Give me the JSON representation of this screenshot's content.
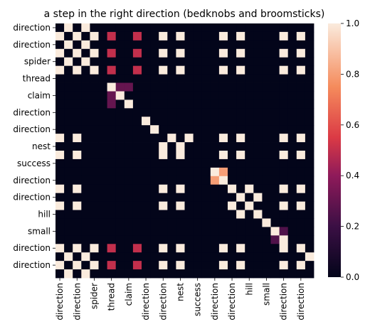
{
  "chart_data": {
    "type": "heatmap",
    "title": "a step in the right direction (bedknobs and broomsticks)",
    "xlabel": "",
    "ylabel": "",
    "x_tick_labels": [
      "direction",
      "direction",
      "spider",
      "thread",
      "claim",
      "direction",
      "direction",
      "nest",
      "success",
      "direction",
      "direction",
      "hill",
      "small",
      "direction",
      "direction"
    ],
    "y_tick_labels": [
      "direction",
      "direction",
      "spider",
      "thread",
      "claim",
      "direction",
      "direction",
      "nest",
      "success",
      "direction",
      "direction",
      "hill",
      "small",
      "direction",
      "direction"
    ],
    "n_rows": 30,
    "n_cols": 30,
    "tick_every": 2,
    "colorscale": "rocket",
    "colorbar": {
      "min": 0.0,
      "max": 1.0,
      "ticks": [
        "0.0",
        "0.2",
        "0.4",
        "0.6",
        "0.8",
        "1.0"
      ]
    },
    "values": [
      [
        0,
        1,
        0,
        1,
        0,
        0,
        0,
        0,
        0,
        0,
        0,
        0,
        0,
        0,
        0,
        0,
        0,
        0,
        0,
        0,
        0,
        0,
        0,
        0,
        0,
        0,
        0,
        0,
        0,
        0
      ],
      [
        1,
        0,
        1,
        0,
        1,
        0,
        0.5,
        0,
        0,
        0.5,
        0,
        0,
        1,
        0,
        1,
        0,
        0,
        0,
        0,
        1,
        0,
        1,
        0,
        0,
        0,
        0,
        1,
        0,
        1,
        0
      ],
      [
        0,
        1,
        0,
        1,
        0,
        0,
        0,
        0,
        0,
        0,
        0,
        0,
        0,
        0,
        0,
        0,
        0,
        0,
        0,
        0,
        0,
        0,
        0,
        0,
        0,
        0,
        0,
        0,
        0,
        0
      ],
      [
        1,
        0,
        1,
        0,
        1,
        0,
        0.5,
        0,
        0,
        0.5,
        0,
        0,
        1,
        0,
        1,
        0,
        0,
        0,
        0,
        1,
        0,
        1,
        0,
        0,
        0,
        0,
        1,
        0,
        1,
        0
      ],
      [
        0,
        1,
        0,
        1,
        0,
        0,
        0,
        0,
        0,
        0,
        0,
        0,
        0,
        0,
        0,
        0,
        0,
        0,
        0,
        0,
        0,
        0,
        0,
        0,
        0,
        0,
        0,
        0,
        0,
        0
      ],
      [
        1,
        0,
        1,
        0,
        1,
        0,
        0.5,
        0,
        0,
        0.5,
        0,
        0,
        1,
        0,
        1,
        0,
        0,
        0,
        0,
        1,
        0,
        1,
        0,
        0,
        0,
        0,
        1,
        0,
        1,
        0
      ],
      [
        0,
        0,
        0,
        0,
        0,
        0,
        0,
        0,
        0,
        0,
        0,
        0,
        0,
        0,
        0,
        0,
        0,
        0,
        0,
        0,
        0,
        0,
        0,
        0,
        0,
        0,
        0,
        0,
        0,
        0
      ],
      [
        0,
        0,
        0,
        0,
        0,
        0,
        1,
        0.3,
        0.3,
        0,
        0,
        0,
        0,
        0,
        0,
        0,
        0,
        0,
        0,
        0,
        0,
        0,
        0,
        0,
        0,
        0,
        0,
        0,
        0,
        0
      ],
      [
        0,
        0,
        0,
        0,
        0,
        0,
        0.3,
        1,
        0,
        0,
        0,
        0,
        0,
        0,
        0,
        0,
        0,
        0,
        0,
        0,
        0,
        0,
        0,
        0,
        0,
        0,
        0,
        0,
        0,
        0
      ],
      [
        0,
        0,
        0,
        0,
        0,
        0,
        0.3,
        0,
        1,
        0,
        0,
        0,
        0,
        0,
        0,
        0,
        0,
        0,
        0,
        0,
        0,
        0,
        0,
        0,
        0,
        0,
        0,
        0,
        0,
        0
      ],
      [
        0,
        0,
        0,
        0,
        0,
        0,
        0,
        0,
        0,
        0,
        0,
        0,
        0,
        0,
        0,
        0,
        0,
        0,
        0,
        0,
        0,
        0,
        0,
        0,
        0,
        0,
        0,
        0,
        0,
        0
      ],
      [
        0,
        0,
        0,
        0,
        0,
        0,
        0,
        0,
        0,
        0,
        1,
        0,
        0,
        0,
        0,
        0,
        0,
        0,
        0,
        0,
        0,
        0,
        0,
        0,
        0,
        0,
        0,
        0,
        0,
        0
      ],
      [
        0,
        0,
        0,
        0,
        0,
        0,
        0,
        0,
        0,
        0,
        0,
        1,
        0,
        0,
        0,
        0,
        0,
        0,
        0,
        0,
        0,
        0,
        0,
        0,
        0,
        0,
        0,
        0,
        0,
        0
      ],
      [
        1,
        0,
        1,
        0,
        0,
        0,
        0,
        0,
        0,
        0,
        0,
        0,
        0,
        1,
        0,
        1,
        0,
        0,
        0,
        1,
        0,
        1,
        0,
        0,
        0,
        0,
        1,
        0,
        1,
        0
      ],
      [
        0,
        0,
        0,
        0,
        0,
        0,
        0,
        0,
        0,
        0,
        0,
        0,
        1,
        0,
        1,
        0,
        0,
        0,
        0,
        0,
        0,
        0,
        0,
        0,
        0,
        0,
        0,
        0,
        0,
        0
      ],
      [
        1,
        0,
        1,
        0,
        0,
        0,
        0,
        0,
        0,
        0,
        0,
        0,
        1,
        0,
        1,
        0,
        0,
        0,
        0,
        1,
        0,
        1,
        0,
        0,
        0,
        0,
        1,
        0,
        1,
        0
      ],
      [
        0,
        0,
        0,
        0,
        0,
        0,
        0,
        0,
        0,
        0,
        0,
        0,
        0,
        0,
        0,
        0,
        0,
        0,
        0,
        0,
        0,
        0,
        0,
        0,
        0,
        0,
        0,
        0,
        0,
        0
      ],
      [
        0,
        0,
        0,
        0,
        0,
        0,
        0,
        0,
        0,
        0,
        0,
        0,
        0,
        0,
        0,
        0,
        0,
        0,
        1,
        0.8,
        0,
        0,
        0,
        0,
        0,
        0,
        0,
        0,
        0,
        0
      ],
      [
        0,
        0,
        0,
        0,
        0,
        0,
        0,
        0,
        0,
        0,
        0,
        0,
        0,
        0,
        0,
        0,
        0,
        0,
        0.8,
        1,
        0,
        0,
        0,
        0,
        0,
        0,
        0,
        0,
        0,
        0
      ],
      [
        1,
        0,
        1,
        0,
        0,
        0,
        0,
        0,
        0,
        0,
        0,
        0,
        1,
        0,
        1,
        0,
        0,
        0,
        0,
        0,
        1,
        0,
        1,
        0,
        0,
        0,
        1,
        0,
        1,
        0
      ],
      [
        0,
        0,
        0,
        0,
        0,
        0,
        0,
        0,
        0,
        0,
        0,
        0,
        0,
        0,
        0,
        0,
        0,
        0,
        0,
        0,
        0,
        1,
        0,
        1,
        0,
        0,
        0,
        0,
        0,
        0
      ],
      [
        1,
        0,
        1,
        0,
        0,
        0,
        0,
        0,
        0,
        0,
        0,
        0,
        1,
        0,
        1,
        0,
        0,
        0,
        0,
        0,
        1,
        0,
        1,
        0,
        0,
        0,
        1,
        0,
        1,
        0
      ],
      [
        0,
        0,
        0,
        0,
        0,
        0,
        0,
        0,
        0,
        0,
        0,
        0,
        0,
        0,
        0,
        0,
        0,
        0,
        0,
        0,
        0,
        1,
        0,
        1,
        0,
        0,
        0,
        0,
        0,
        0
      ],
      [
        0,
        0,
        0,
        0,
        0,
        0,
        0,
        0,
        0,
        0,
        0,
        0,
        0,
        0,
        0,
        0,
        0,
        0,
        0,
        0,
        0,
        0,
        0,
        0,
        1,
        0,
        0,
        0,
        0,
        0
      ],
      [
        0,
        0,
        0,
        0,
        0,
        0,
        0,
        0,
        0,
        0,
        0,
        0,
        0,
        0,
        0,
        0,
        0,
        0,
        0,
        0,
        0,
        0,
        0,
        0,
        0,
        1,
        0.25,
        0,
        0,
        0
      ],
      [
        0,
        0,
        0,
        0,
        0,
        0,
        0,
        0,
        0,
        0,
        0,
        0,
        0,
        0,
        0,
        0,
        0,
        0,
        0,
        0,
        0,
        0,
        0,
        0,
        0,
        0.25,
        1,
        0,
        0,
        0
      ],
      [
        1,
        0,
        1,
        0,
        1,
        0,
        0.5,
        0,
        0,
        0.5,
        0,
        0,
        1,
        0,
        1,
        0,
        0,
        0,
        0,
        1,
        0,
        1,
        0,
        0,
        0,
        0,
        1,
        0,
        1,
        0
      ],
      [
        0,
        1,
        0,
        1,
        0,
        0,
        0,
        0,
        0,
        0,
        0,
        0,
        0,
        0,
        0,
        0,
        0,
        0,
        0,
        0,
        0,
        0,
        0,
        0,
        0,
        0,
        0,
        0,
        0,
        1
      ],
      [
        1,
        0,
        1,
        0,
        1,
        0,
        0.5,
        0,
        0,
        0.5,
        0,
        0,
        1,
        0,
        1,
        0,
        0,
        0,
        0,
        1,
        0,
        1,
        0,
        0,
        0,
        0,
        1,
        0,
        1,
        0
      ],
      [
        0,
        1,
        0,
        1,
        0,
        0,
        0,
        0,
        0,
        0,
        0,
        0,
        0,
        0,
        0,
        0,
        0,
        0,
        0,
        0,
        0,
        0,
        0,
        0,
        0,
        0,
        0,
        0,
        0,
        0
      ]
    ]
  }
}
